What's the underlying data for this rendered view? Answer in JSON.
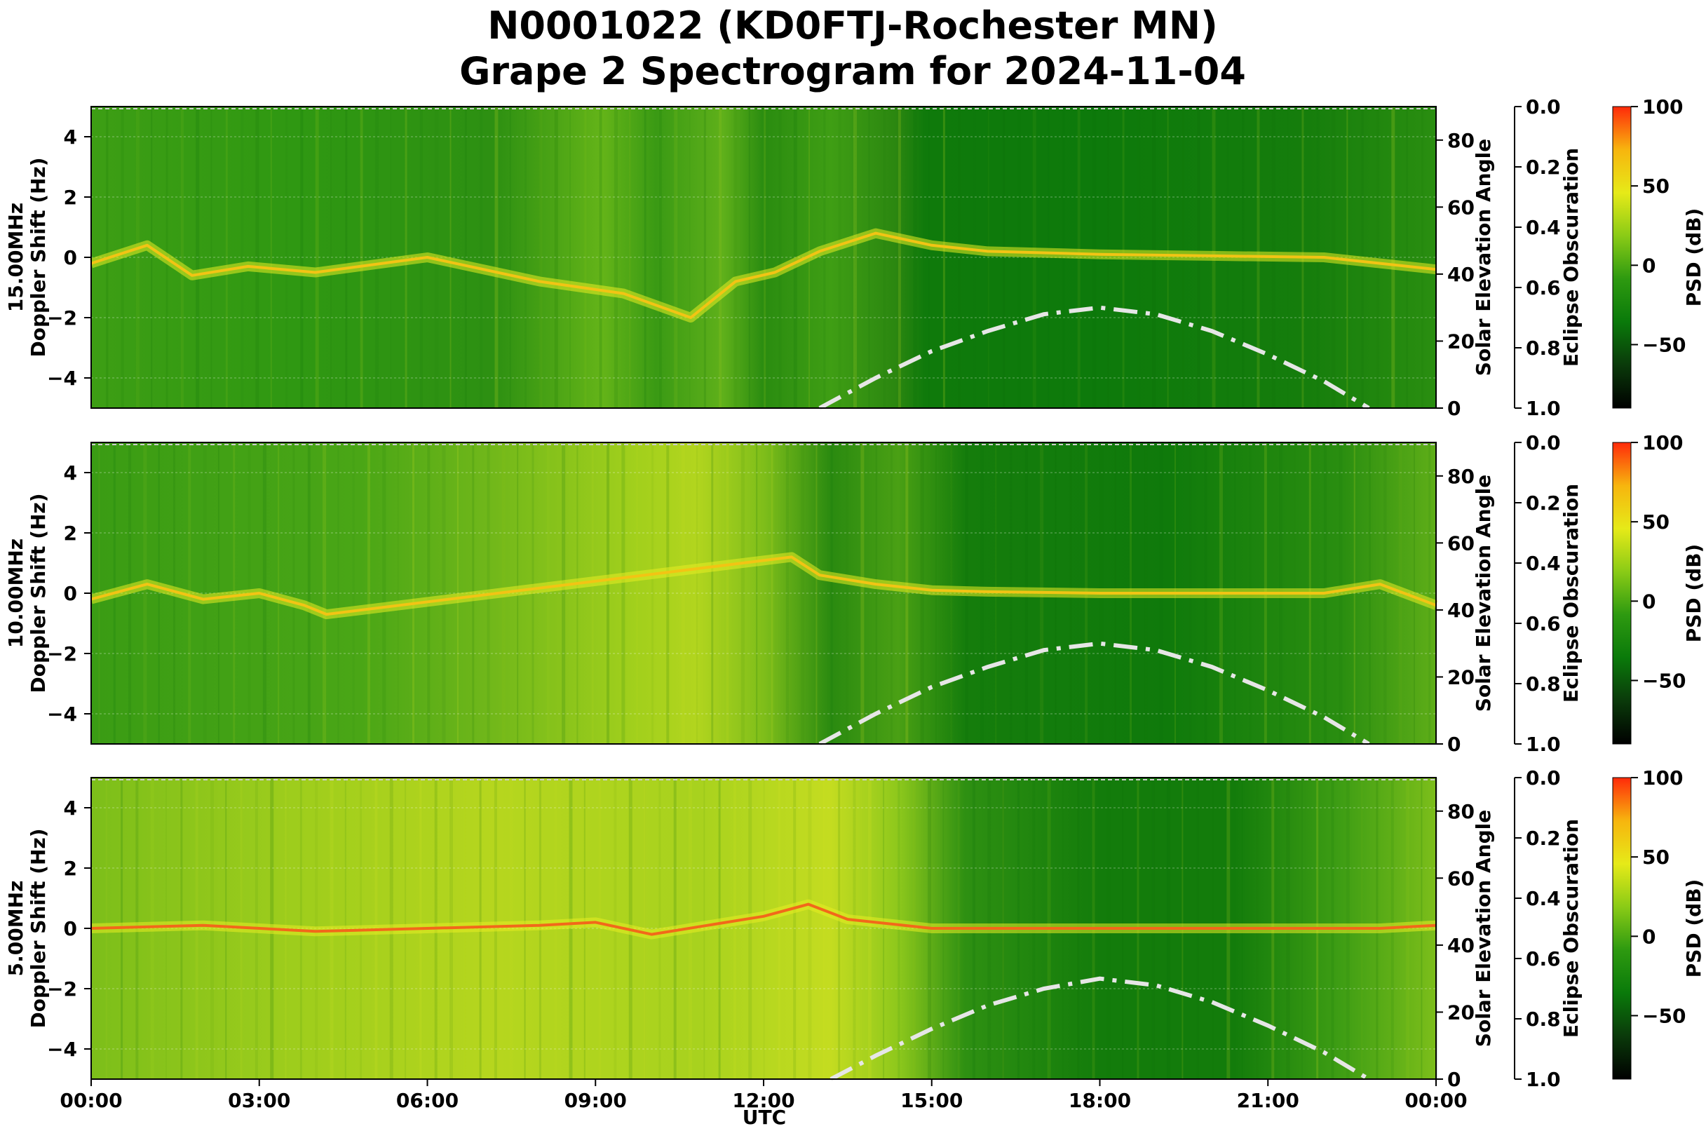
{
  "title_line1": "N0001022 (KD0FTJ-Rochester MN)",
  "title_line2": "Grape 2 Spectrogram for 2024-11-04",
  "x_axis": {
    "label": "UTC",
    "ticks": [
      "00:00",
      "03:00",
      "06:00",
      "09:00",
      "12:00",
      "15:00",
      "18:00",
      "21:00",
      "00:00"
    ],
    "range_hours": [
      0,
      24
    ]
  },
  "right_axis": {
    "label": "Solar Elevation Angle",
    "ticks": [
      "0",
      "20",
      "40",
      "60",
      "80"
    ],
    "range": [
      0,
      90
    ]
  },
  "eclipse_axis": {
    "label": "Eclipse Obscuration",
    "ticks": [
      "0.0",
      "0.2",
      "0.4",
      "0.6",
      "0.8",
      "1.0"
    ],
    "range": [
      0.0,
      1.0
    ],
    "inverted": true
  },
  "colorbar": {
    "label": "PSD (dB)",
    "ticks": [
      "100",
      "50",
      "0",
      "−50"
    ],
    "range": [
      -90,
      100
    ],
    "colors": [
      "#000000",
      "#0a3a0a",
      "#0a7a0a",
      "#2e9a10",
      "#8acb16",
      "#e6ea18",
      "#f7b50e",
      "#ff2a0a"
    ]
  },
  "chart_data": [
    {
      "type": "heatmap",
      "frequency": "15.00MHz",
      "ylabel_line1": "15.00MHz",
      "ylabel_line2": "Doppler Shift (Hz)",
      "ylim": [
        -5,
        5
      ],
      "yticks": [
        "4",
        "2",
        "0",
        "−2",
        "−4"
      ],
      "carrier_trace": {
        "x_hours": [
          0,
          1,
          1.8,
          2.8,
          4,
          6,
          8,
          9.5,
          10.7,
          11.5,
          12.2,
          13,
          14,
          15,
          16,
          18,
          20,
          22,
          24
        ],
        "y_hz": [
          -0.2,
          0.4,
          -0.6,
          -0.3,
          -0.5,
          0.0,
          -0.8,
          -1.2,
          -2.0,
          -0.8,
          -0.5,
          0.2,
          0.8,
          0.4,
          0.2,
          0.1,
          0.05,
          0.0,
          -0.4
        ]
      },
      "solar_elevation": {
        "x_hours": [
          13,
          14,
          15,
          16,
          17,
          18,
          19,
          20,
          21,
          22,
          22.8
        ],
        "deg": [
          0,
          9,
          17,
          23,
          28,
          30,
          28,
          23,
          16,
          8,
          0
        ]
      }
    },
    {
      "type": "heatmap",
      "frequency": "10.00MHz",
      "ylabel_line1": "10.00MHz",
      "ylabel_line2": "Doppler Shift (Hz)",
      "ylim": [
        -5,
        5
      ],
      "yticks": [
        "4",
        "2",
        "0",
        "−2",
        "−4"
      ],
      "carrier_trace": {
        "x_hours": [
          0,
          1,
          2,
          3,
          3.8,
          4.2,
          12.5,
          13,
          14,
          15,
          16,
          18,
          20,
          22,
          23,
          24
        ],
        "y_hz": [
          -0.2,
          0.3,
          -0.2,
          0.0,
          -0.4,
          -0.7,
          1.2,
          0.6,
          0.3,
          0.1,
          0.05,
          0.0,
          0.0,
          0.0,
          0.3,
          -0.4
        ]
      },
      "solar_elevation": {
        "x_hours": [
          13,
          14,
          15,
          16,
          17,
          18,
          19,
          20,
          21,
          22,
          22.8
        ],
        "deg": [
          0,
          9,
          17,
          23,
          28,
          30,
          28,
          23,
          16,
          8,
          0
        ]
      }
    },
    {
      "type": "heatmap",
      "frequency": "5.00MHz",
      "ylabel_line1": "5.00MHz",
      "ylabel_line2": "Doppler Shift (Hz)",
      "ylim": [
        -5,
        5
      ],
      "yticks": [
        "4",
        "2",
        "0",
        "−2",
        "−4"
      ],
      "carrier_trace": {
        "x_hours": [
          0,
          2,
          4,
          6,
          8,
          9,
          10,
          11,
          12,
          12.8,
          13.5,
          15,
          18,
          21,
          23,
          24
        ],
        "y_hz": [
          0.0,
          0.1,
          -0.1,
          0.0,
          0.1,
          0.2,
          -0.2,
          0.1,
          0.4,
          0.8,
          0.3,
          0.0,
          0.0,
          0.0,
          0.0,
          0.1
        ]
      },
      "solar_elevation": {
        "x_hours": [
          13.2,
          14,
          15,
          16,
          17,
          18,
          19,
          20,
          21,
          22,
          22.8
        ],
        "deg": [
          0,
          7,
          15,
          22,
          27,
          30,
          28,
          23,
          16,
          8,
          0
        ]
      }
    }
  ]
}
